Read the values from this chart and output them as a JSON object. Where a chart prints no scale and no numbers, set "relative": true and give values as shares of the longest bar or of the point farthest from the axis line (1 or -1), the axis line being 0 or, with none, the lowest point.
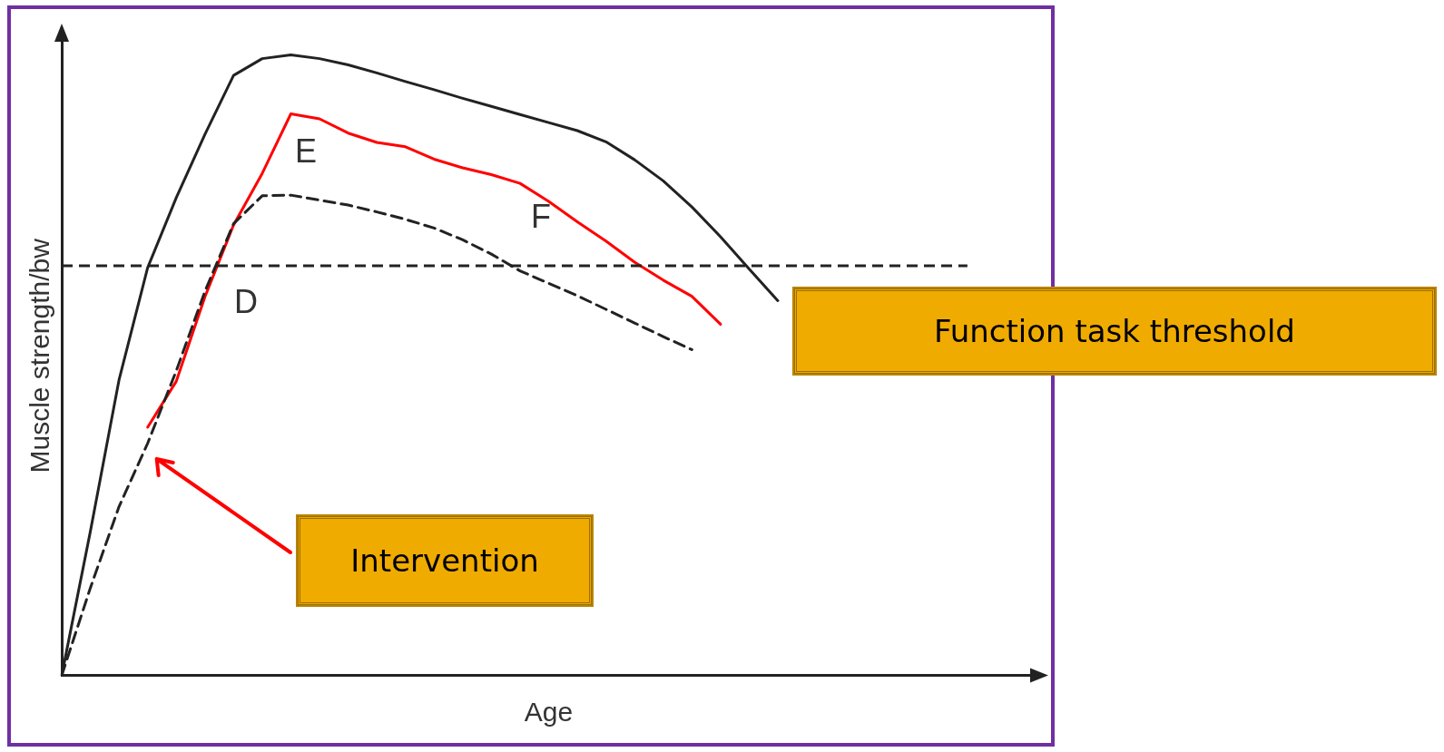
{
  "chart_data": {
    "type": "line",
    "relative": true,
    "xlabel": "Age",
    "ylabel": "Muscle strength/bw",
    "grid": false,
    "legend": false,
    "marker": "none",
    "categories": [
      null,
      null,
      null,
      null,
      null,
      null,
      null,
      null,
      null,
      null,
      null,
      null,
      null,
      null,
      null,
      null,
      null,
      null,
      null,
      null,
      null,
      null,
      null,
      null,
      null,
      null,
      null,
      null,
      null,
      null,
      null,
      null,
      null,
      null,
      null
    ],
    "series": [
      {
        "color": "#222222",
        "line_style": "solid",
        "values": [
          0,
          0.232,
          0.476,
          0.657,
          0.77,
          0.872,
          0.967,
          0.994,
          1,
          0.994,
          0.984,
          0.971,
          0.957,
          0.944,
          0.93,
          0.917,
          0.904,
          0.891,
          0.878,
          0.86,
          0.831,
          0.797,
          0.755,
          0.707,
          0.655,
          0.604,
          null,
          null,
          null,
          null,
          null,
          null,
          null,
          null,
          null
        ]
      },
      {
        "color": "#222222",
        "line_style": "dashed",
        "values": [
          0,
          0.141,
          0.272,
          0.374,
          0.491,
          0.619,
          0.728,
          0.773,
          0.774,
          0.766,
          0.758,
          0.747,
          0.735,
          0.721,
          0.702,
          0.679,
          0.652,
          0.632,
          0.612,
          0.59,
          0.568,
          0.546,
          0.525,
          null,
          null,
          null,
          null,
          null,
          null,
          null,
          null,
          null,
          null,
          null,
          null
        ]
      },
      {
        "color": "#ff0000",
        "line_style": "solid",
        "values": [
          null,
          null,
          null,
          0.4,
          0.474,
          0.61,
          0.726,
          0.809,
          0.905,
          0.897,
          0.874,
          0.859,
          0.852,
          0.832,
          0.818,
          0.807,
          0.793,
          0.764,
          0.731,
          0.7,
          0.666,
          0.637,
          0.611,
          0.566,
          null,
          null,
          null,
          null,
          null,
          null,
          null,
          null,
          null,
          null,
          null
        ]
      }
    ],
    "ref_lines": [
      {
        "axis": "y",
        "value": 0.66,
        "label": "Function task threshold",
        "color": "#222222",
        "line_style": "dashed"
      }
    ],
    "annotations": [
      "D",
      "E",
      "F",
      "Intervention"
    ]
  }
}
